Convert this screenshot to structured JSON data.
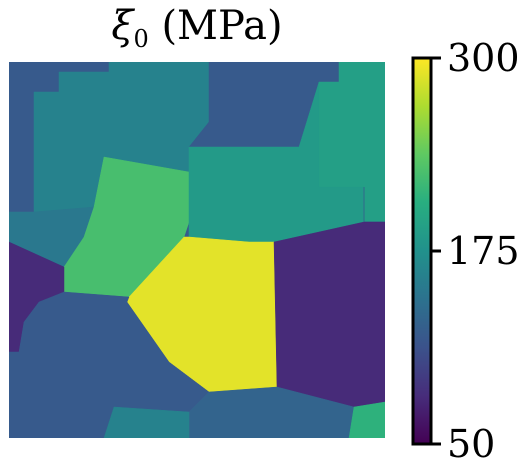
{
  "chart_data": {
    "type": "heatmap",
    "title": {
      "symbol": "ξ",
      "subscript": "0",
      "unit": "(MPa)"
    },
    "colorbar": {
      "colormap": "viridis",
      "range": [
        50,
        300
      ],
      "ticks": [
        50,
        175,
        300
      ],
      "tick_labels": [
        "50",
        "175",
        "300"
      ]
    },
    "grains": [
      {
        "id": "grain-top-left-strip",
        "value": 120
      },
      {
        "id": "grain-top-center",
        "value": 160
      },
      {
        "id": "grain-top-right",
        "value": 120
      },
      {
        "id": "grain-top-right-corner",
        "value": 190
      },
      {
        "id": "grain-left-middle",
        "value": 150
      },
      {
        "id": "grain-green",
        "value": 225
      },
      {
        "id": "grain-teal-center",
        "value": 185
      },
      {
        "id": "grain-right-edge-small",
        "value": 120
      },
      {
        "id": "grain-left-dark",
        "value": 80
      },
      {
        "id": "grain-yellow",
        "value": 290
      },
      {
        "id": "grain-dark-right",
        "value": 80
      },
      {
        "id": "grain-blue-bottom-left",
        "value": 120
      },
      {
        "id": "grain-bottom-center",
        "value": 130
      },
      {
        "id": "grain-bottom-teal-strip",
        "value": 160
      },
      {
        "id": "grain-bottom-right-corner",
        "value": 210
      }
    ]
  }
}
